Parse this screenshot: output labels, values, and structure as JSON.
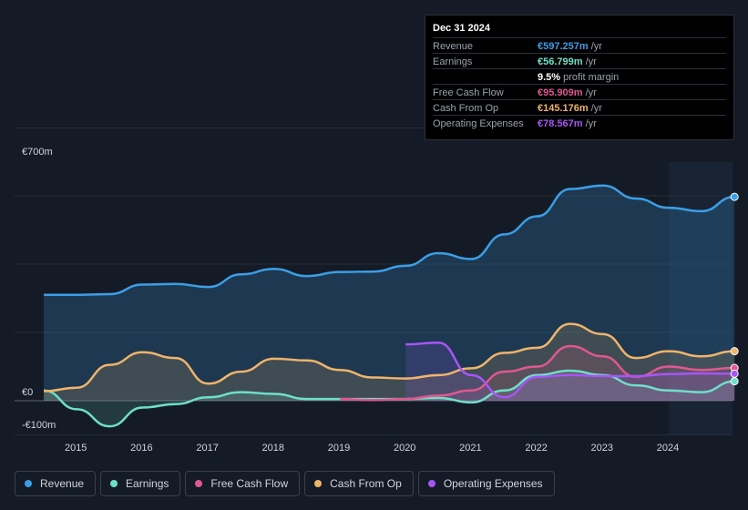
{
  "tooltip": {
    "date": "Dec 31 2024",
    "rows": [
      {
        "label": "Revenue",
        "value": "€597.257m",
        "unit": "/yr",
        "color": "#3b9fe8"
      },
      {
        "label": "Earnings",
        "value": "€56.799m",
        "unit": "/yr",
        "color": "#6ee0c9"
      },
      {
        "label": "",
        "value": "9.5%",
        "unit": "profit margin",
        "color": "#ffffff"
      },
      {
        "label": "Free Cash Flow",
        "value": "€95.909m",
        "unit": "/yr",
        "color": "#e0588f"
      },
      {
        "label": "Cash From Op",
        "value": "€145.176m",
        "unit": "/yr",
        "color": "#f0b46a"
      },
      {
        "label": "Operating Expenses",
        "value": "€78.567m",
        "unit": "/yr",
        "color": "#a855f7"
      }
    ]
  },
  "legend": [
    {
      "label": "Revenue",
      "color": "#3b9fe8"
    },
    {
      "label": "Earnings",
      "color": "#6ee0c9"
    },
    {
      "label": "Free Cash Flow",
      "color": "#e0588f"
    },
    {
      "label": "Cash From Op",
      "color": "#f0b46a"
    },
    {
      "label": "Operating Expenses",
      "color": "#a855f7"
    }
  ],
  "chart_data": {
    "type": "area",
    "ylabels": [
      "€700m",
      "€0",
      "-€100m"
    ],
    "ylim": [
      -100,
      700
    ],
    "xlim": [
      2014.5,
      2025.0
    ],
    "xticks": [
      "2015",
      "2016",
      "2017",
      "2018",
      "2019",
      "2020",
      "2021",
      "2022",
      "2023",
      "2024"
    ],
    "forecast_start": 2024.0,
    "series": [
      {
        "name": "Revenue",
        "color": "#3b9fe8",
        "x": [
          2014.5,
          2015.0,
          2015.5,
          2016.0,
          2016.5,
          2017.0,
          2017.5,
          2018.0,
          2018.5,
          2019.0,
          2019.5,
          2020.0,
          2020.5,
          2021.0,
          2021.5,
          2022.0,
          2022.5,
          2023.0,
          2023.5,
          2024.0,
          2024.5,
          2025.0
        ],
        "values": [
          310,
          310,
          312,
          340,
          342,
          333,
          370,
          386,
          365,
          377,
          378,
          395,
          432,
          415,
          487,
          540,
          620,
          630,
          592,
          565,
          555,
          597
        ]
      },
      {
        "name": "Earnings",
        "color": "#6ee0c9",
        "x": [
          2014.5,
          2015.0,
          2015.5,
          2016.0,
          2016.5,
          2017.0,
          2017.5,
          2018.0,
          2018.5,
          2019.0,
          2019.5,
          2020.0,
          2020.5,
          2021.0,
          2021.5,
          2022.0,
          2022.5,
          2023.0,
          2023.5,
          2024.0,
          2024.5,
          2025.0
        ],
        "values": [
          30,
          -25,
          -75,
          -20,
          -10,
          10,
          25,
          20,
          5,
          5,
          5,
          5,
          8,
          -5,
          30,
          75,
          88,
          75,
          45,
          30,
          25,
          57
        ]
      },
      {
        "name": "Free Cash Flow",
        "color": "#e0588f",
        "x": [
          2019.0,
          2019.5,
          2020.0,
          2020.5,
          2021.0,
          2021.5,
          2022.0,
          2022.5,
          2023.0,
          2023.5,
          2024.0,
          2024.5,
          2025.0
        ],
        "values": [
          5,
          2,
          5,
          15,
          30,
          85,
          100,
          160,
          130,
          70,
          100,
          90,
          96
        ]
      },
      {
        "name": "Cash From Op",
        "color": "#f0b46a",
        "x": [
          2014.5,
          2015.0,
          2015.5,
          2016.0,
          2016.5,
          2017.0,
          2017.5,
          2018.0,
          2018.5,
          2019.0,
          2019.5,
          2020.0,
          2020.5,
          2021.0,
          2021.5,
          2022.0,
          2022.5,
          2023.0,
          2023.5,
          2024.0,
          2024.5,
          2025.0
        ],
        "values": [
          28,
          38,
          105,
          142,
          125,
          50,
          85,
          123,
          118,
          90,
          68,
          65,
          75,
          95,
          140,
          155,
          225,
          195,
          125,
          145,
          130,
          145
        ]
      },
      {
        "name": "Operating Expenses",
        "color": "#a855f7",
        "x": [
          2020.0,
          2020.5,
          2021.0,
          2021.5,
          2022.0,
          2022.5,
          2023.0,
          2023.5,
          2024.0,
          2024.5,
          2025.0
        ],
        "values": [
          165,
          170,
          75,
          10,
          70,
          75,
          72,
          72,
          78,
          80,
          79
        ]
      }
    ]
  }
}
